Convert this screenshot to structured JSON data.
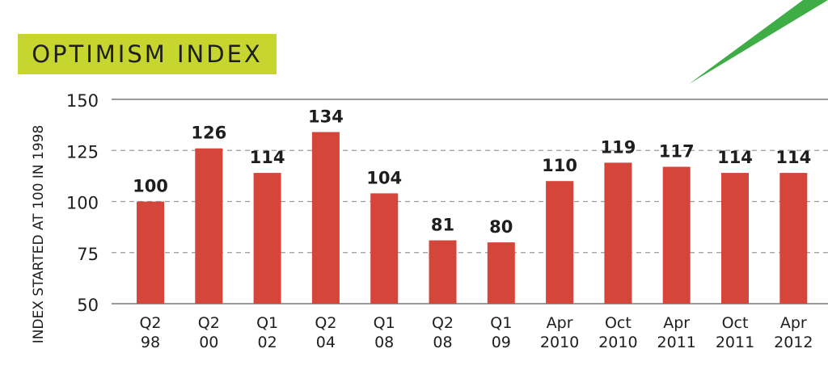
{
  "colors": {
    "bar": "#d6453a",
    "title_bg": "#c7d52f",
    "accent_arrow": "#3fad46"
  },
  "chart_data": {
    "type": "bar",
    "title": "OPTIMISM INDEX",
    "ylabel": "INDEX STARTED AT 100 IN 1998",
    "xlabel": "",
    "ylim": [
      50,
      150
    ],
    "yticks": [
      50,
      75,
      100,
      125,
      150
    ],
    "grid": true,
    "categories": [
      [
        "Q2",
        "98"
      ],
      [
        "Q2",
        "00"
      ],
      [
        "Q1",
        "02"
      ],
      [
        "Q2",
        "04"
      ],
      [
        "Q1",
        "08"
      ],
      [
        "Q2",
        "08"
      ],
      [
        "Q1",
        "09"
      ],
      [
        "Apr",
        "2010"
      ],
      [
        "Oct",
        "2010"
      ],
      [
        "Apr",
        "2011"
      ],
      [
        "Oct",
        "2011"
      ],
      [
        "Apr",
        "2012"
      ]
    ],
    "values": [
      100,
      126,
      114,
      134,
      104,
      81,
      80,
      110,
      119,
      117,
      114,
      114
    ],
    "data_labels": [
      "100",
      "126",
      "114",
      "134",
      "104",
      "81",
      "80",
      "110",
      "119",
      "117",
      "114",
      "114"
    ]
  }
}
